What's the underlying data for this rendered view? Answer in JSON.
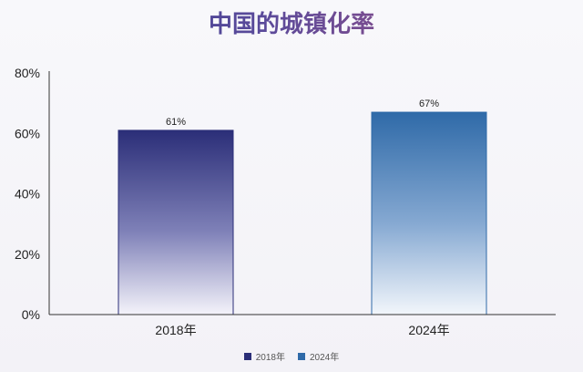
{
  "chart_data": {
    "type": "bar",
    "title": "中国的城镇化率",
    "categories": [
      "2018年",
      "2024年"
    ],
    "values": [
      61,
      67
    ],
    "data_labels": [
      "61%",
      "67%"
    ],
    "ylim": [
      0,
      80
    ],
    "yticks": [
      0,
      20,
      40,
      60,
      80
    ],
    "ytick_labels": [
      "0%",
      "20%",
      "40%",
      "60%",
      "80%"
    ],
    "xlabel": "",
    "ylabel": "",
    "grid": false,
    "legend_position": "bottom",
    "legend": [
      {
        "label": "2018年",
        "color": "#2b2e78"
      },
      {
        "label": "2024年",
        "color": "#2f6aa8"
      }
    ],
    "colors": [
      "#2b2e78",
      "#2f6aa8"
    ]
  }
}
